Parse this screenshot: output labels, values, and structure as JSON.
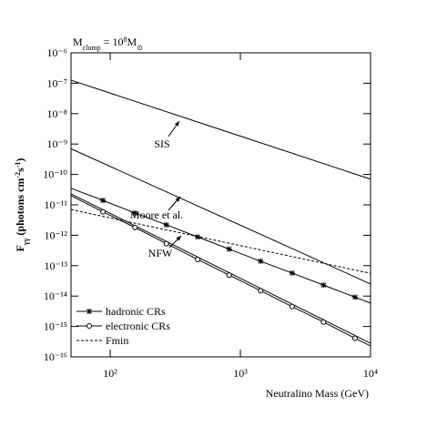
{
  "chart_data": {
    "type": "line",
    "annotation_parts": [
      {
        "text": "M"
      },
      {
        "text": "clump",
        "shift": "sub"
      },
      {
        "text": " = 10"
      },
      {
        "text": "8",
        "shift": "super"
      },
      {
        "text": "M"
      },
      {
        "text": "⊙",
        "shift": "sub"
      }
    ],
    "ylabel_parts": [
      {
        "text": "F"
      },
      {
        "text": "γγ",
        "shift": "sub"
      },
      {
        "text": " (photons cm"
      },
      {
        "text": "-2",
        "shift": "super"
      },
      {
        "text": "s"
      },
      {
        "text": "-1",
        "shift": "super"
      },
      {
        "text": ")"
      }
    ],
    "xlabel": "Neutralino Mass (GeV)",
    "xlim": [
      50,
      10000
    ],
    "ylim": [
      1e-16,
      1e-06
    ],
    "xscale": "log",
    "yscale": "log",
    "xticks": [
      {
        "value": 100,
        "label": "10²"
      },
      {
        "value": 1000,
        "label": "10³"
      },
      {
        "value": 10000,
        "label": "10⁴"
      }
    ],
    "yticks": [
      {
        "value": 1e-16,
        "label": "10⁻¹⁶"
      },
      {
        "value": 1e-15,
        "label": "10⁻¹⁵"
      },
      {
        "value": 1e-14,
        "label": "10⁻¹⁴"
      },
      {
        "value": 1e-13,
        "label": "10⁻¹³"
      },
      {
        "value": 1e-12,
        "label": "10⁻¹²"
      },
      {
        "value": 1e-11,
        "label": "10⁻¹¹"
      },
      {
        "value": 1e-10,
        "label": "10⁻¹⁰"
      },
      {
        "value": 1e-09,
        "label": "10⁻⁹"
      },
      {
        "value": 1e-08,
        "label": "10⁻⁸"
      },
      {
        "value": 1e-07,
        "label": "10⁻⁷"
      },
      {
        "value": 1e-06,
        "label": "10⁻⁶"
      }
    ],
    "series": [
      {
        "name": "SIS",
        "color": "#000000",
        "style": "solid",
        "annotate": true,
        "x": [
          50,
          10000
        ],
        "values": [
          1.26e-07,
          7e-11
        ]
      },
      {
        "name": "Moore et al.",
        "color": "#000000",
        "style": "solid",
        "annotate": true,
        "x": [
          50,
          10000
        ],
        "values": [
          7e-10,
          2.5e-14
        ]
      },
      {
        "name": "NFW",
        "color": "#000000",
        "style": "solid",
        "annotate": true,
        "x": [
          50,
          10000
        ],
        "values": [
          2.3e-11,
          2.8e-16
        ]
      },
      {
        "name": "hadronic CRs",
        "color": "#000000",
        "style": "solid",
        "marker": "asterisk",
        "x": [
          50,
          88,
          155,
          270,
          470,
          820,
          1430,
          2500,
          4350,
          7600,
          10000
        ],
        "values": [
          3.5e-11,
          1.4e-11,
          5.4e-12,
          2.2e-12,
          8.8e-13,
          3.5e-13,
          1.4e-13,
          5.7e-14,
          2.3e-14,
          9.2e-15,
          5.9e-15
        ]
      },
      {
        "name": "electronic CRs",
        "color": "#000000",
        "style": "solid",
        "marker": "circle",
        "x": [
          50,
          88,
          155,
          270,
          470,
          820,
          1430,
          2500,
          4350,
          7600,
          10000
        ],
        "values": [
          2e-11,
          5.9e-12,
          1.8e-12,
          5.3e-13,
          1.6e-13,
          4.9e-14,
          1.5e-14,
          4.5e-15,
          1.4e-15,
          4.1e-16,
          2.3e-16
        ]
      },
      {
        "name": "Fmin",
        "color": "#000000",
        "style": "dashed",
        "x": [
          50,
          10000
        ],
        "values": [
          7e-12,
          5.6e-14
        ]
      }
    ]
  }
}
